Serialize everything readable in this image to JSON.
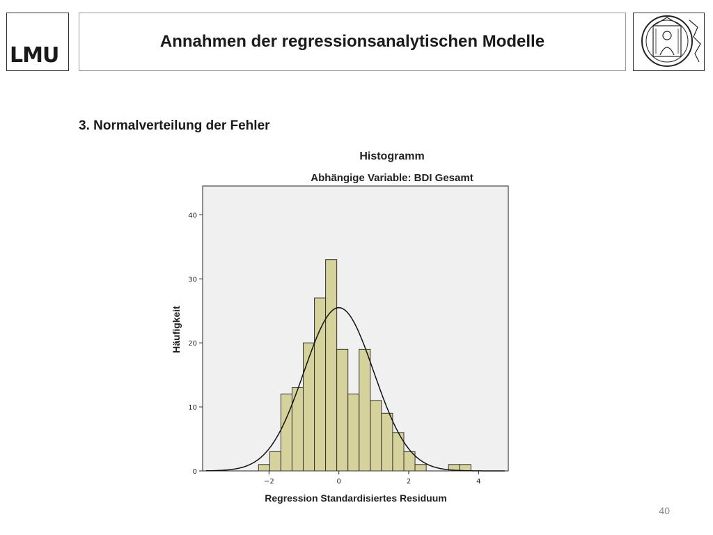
{
  "header": {
    "logo_text": "LMU",
    "title": "Annahmen der regressionsanalytischen Modelle"
  },
  "section": {
    "subtitle": "3. Normalverteilung der Fehler"
  },
  "chart_data": {
    "type": "bar",
    "title": "Histogramm",
    "subtitle": "Abhängige Variable: BDI Gesamt",
    "xlabel": "Regression Standardisiertes Residuum",
    "ylabel": "Häufigkeit",
    "bin_width": 0.32,
    "bins": [
      {
        "start": -2.3,
        "value": 1
      },
      {
        "start": -1.98,
        "value": 3
      },
      {
        "start": -1.66,
        "value": 12
      },
      {
        "start": -1.34,
        "value": 13
      },
      {
        "start": -1.02,
        "value": 20
      },
      {
        "start": -0.7,
        "value": 27
      },
      {
        "start": -0.38,
        "value": 33
      },
      {
        "start": -0.06,
        "value": 19
      },
      {
        "start": 0.26,
        "value": 12
      },
      {
        "start": 0.58,
        "value": 19
      },
      {
        "start": 0.9,
        "value": 11
      },
      {
        "start": 1.22,
        "value": 9
      },
      {
        "start": 1.54,
        "value": 6
      },
      {
        "start": 1.86,
        "value": 3
      },
      {
        "start": 2.18,
        "value": 1
      },
      {
        "start": 2.5,
        "value": 0
      },
      {
        "start": 2.82,
        "value": 0
      },
      {
        "start": 3.14,
        "value": 1
      },
      {
        "start": 3.46,
        "value": 1
      }
    ],
    "normal_curve": {
      "mean": 0,
      "sd": 1,
      "peak": 25.5
    },
    "x_ticks": [
      -2,
      0,
      2,
      4
    ],
    "y_ticks": [
      0,
      10,
      20,
      30,
      40
    ],
    "xlim": [
      -3.9,
      4.85
    ],
    "ylim": [
      0,
      44.5
    ],
    "grid": false,
    "colors": {
      "plot_background": "#f0f0f0",
      "bar_fill": "#d5d29c",
      "bar_stroke": "#333333",
      "curve": "#111111"
    }
  },
  "footer": {
    "page_number": "40"
  }
}
